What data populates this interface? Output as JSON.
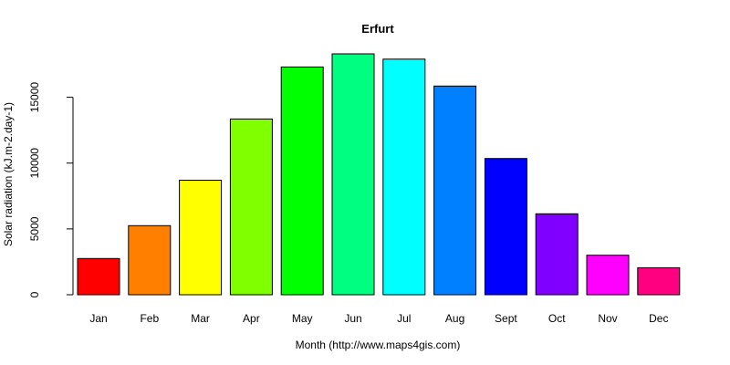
{
  "chart_data": {
    "type": "bar",
    "title": "Erfurt",
    "xlabel": "Month (http://www.maps4gis.com)",
    "ylabel": "Solar radiation (kJ.m-2.day-1)",
    "categories": [
      "Jan",
      "Feb",
      "Mar",
      "Apr",
      "May",
      "Jun",
      "Jul",
      "Aug",
      "Sept",
      "Oct",
      "Nov",
      "Dec"
    ],
    "values": [
      2750,
      5250,
      8700,
      13350,
      17300,
      18300,
      17900,
      15850,
      10350,
      6150,
      3000,
      2050
    ],
    "colors": [
      "#FF0000",
      "#FF8000",
      "#FFFF00",
      "#80FF00",
      "#00FF00",
      "#00FF80",
      "#00FFFF",
      "#0080FF",
      "#0000FF",
      "#8000FF",
      "#FF00FF",
      "#FF0080"
    ],
    "ylim": [
      0,
      18300
    ],
    "yticks": [
      0,
      5000,
      10000,
      15000
    ],
    "grid": false,
    "legend": "none"
  }
}
